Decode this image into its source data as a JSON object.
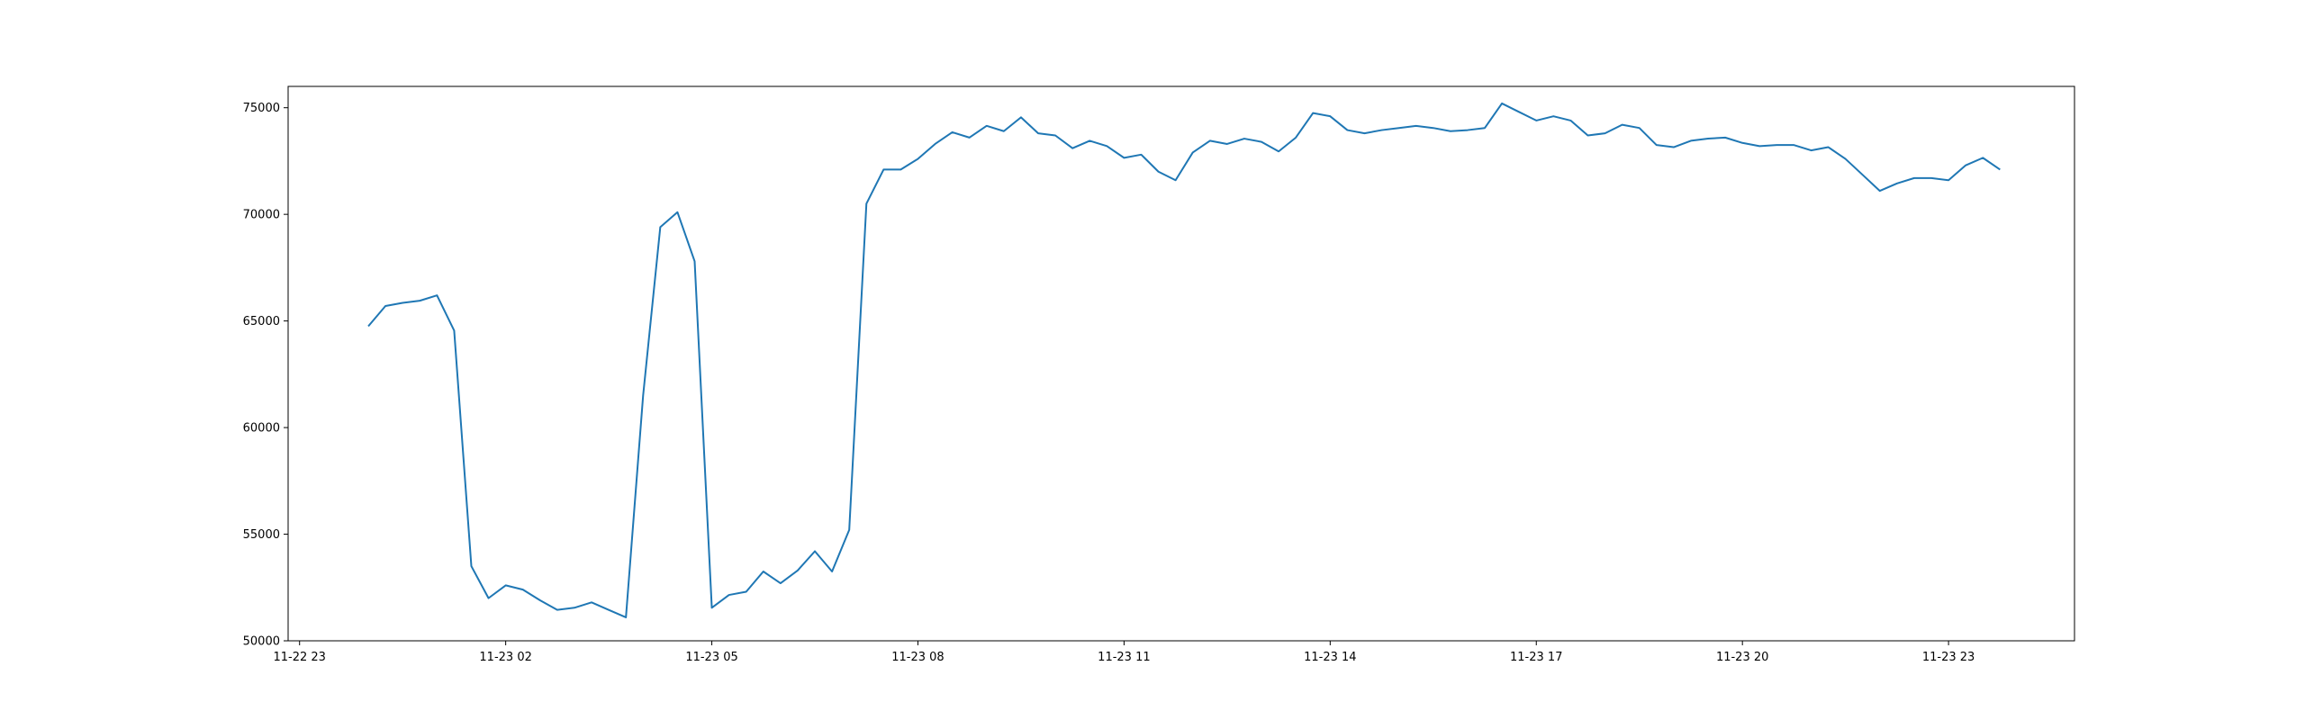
{
  "chart_data": {
    "type": "line",
    "title": "",
    "xlabel": "",
    "ylabel": "",
    "grid": false,
    "legend": "none",
    "x_tick_labels": [
      "11-22 23",
      "11-23 02",
      "11-23 05",
      "11-23 08",
      "11-23 11",
      "11-23 14",
      "11-23 17",
      "11-23 20",
      "11-23 23"
    ],
    "y_tick_labels": [
      "50000",
      "55000",
      "60000",
      "65000",
      "70000",
      "75000"
    ],
    "y_ticks": [
      50000,
      55000,
      60000,
      65000,
      70000,
      75000
    ],
    "xlim": [
      "11-22 22:50",
      "11-24 00:50"
    ],
    "ylim": [
      50000,
      76000
    ],
    "colors": {
      "line": "#1f77b4",
      "axes": "#000000",
      "background": "#ffffff"
    },
    "series": [
      {
        "x": [
          "11-23 00:00",
          "11-23 00:15",
          "11-23 00:30",
          "11-23 00:45",
          "11-23 01:00",
          "11-23 01:15",
          "11-23 01:30",
          "11-23 01:45",
          "11-23 02:00",
          "11-23 02:15",
          "11-23 02:30",
          "11-23 02:45",
          "11-23 03:00",
          "11-23 03:15",
          "11-23 03:30",
          "11-23 03:45",
          "11-23 04:00",
          "11-23 04:15",
          "11-23 04:30",
          "11-23 04:45",
          "11-23 05:00",
          "11-23 05:15",
          "11-23 05:30",
          "11-23 05:45",
          "11-23 06:00",
          "11-23 06:15",
          "11-23 06:30",
          "11-23 06:45",
          "11-23 07:00",
          "11-23 07:15",
          "11-23 07:30",
          "11-23 07:45",
          "11-23 08:00",
          "11-23 08:15",
          "11-23 08:30",
          "11-23 08:45",
          "11-23 09:00",
          "11-23 09:15",
          "11-23 09:30",
          "11-23 09:45",
          "11-23 10:00",
          "11-23 10:15",
          "11-23 10:30",
          "11-23 10:45",
          "11-23 11:00",
          "11-23 11:15",
          "11-23 11:30",
          "11-23 11:45",
          "11-23 12:00",
          "11-23 12:15",
          "11-23 12:30",
          "11-23 12:45",
          "11-23 13:00",
          "11-23 13:15",
          "11-23 13:30",
          "11-23 13:45",
          "11-23 14:00",
          "11-23 14:15",
          "11-23 14:30",
          "11-23 14:45",
          "11-23 15:00",
          "11-23 15:15",
          "11-23 15:30",
          "11-23 15:45",
          "11-23 16:00",
          "11-23 16:15",
          "11-23 16:30",
          "11-23 16:45",
          "11-23 17:00",
          "11-23 17:15",
          "11-23 17:30",
          "11-23 17:45",
          "11-23 18:00",
          "11-23 18:15",
          "11-23 18:30",
          "11-23 18:45",
          "11-23 19:00",
          "11-23 19:15",
          "11-23 19:30",
          "11-23 19:45",
          "11-23 20:00",
          "11-23 20:15",
          "11-23 20:30",
          "11-23 20:45",
          "11-23 21:00",
          "11-23 21:15",
          "11-23 21:30",
          "11-23 21:45",
          "11-23 22:00",
          "11-23 22:15",
          "11-23 22:30",
          "11-23 22:45",
          "11-23 23:00",
          "11-23 23:15",
          "11-23 23:30",
          "11-23 23:45"
        ],
        "values": [
          64750,
          65700,
          65850,
          65950,
          66200,
          64550,
          53500,
          52000,
          52600,
          52400,
          51900,
          51450,
          51550,
          51800,
          51450,
          51100,
          61500,
          69400,
          70100,
          67800,
          51550,
          52150,
          52300,
          53250,
          52700,
          53300,
          54200,
          53250,
          55200,
          70500,
          72100,
          72100,
          72600,
          73300,
          73850,
          73600,
          74150,
          73900,
          74550,
          73800,
          73700,
          73100,
          73450,
          73200,
          72650,
          72800,
          72000,
          71600,
          72900,
          73450,
          73300,
          73550,
          73400,
          72950,
          73600,
          74750,
          74600,
          73950,
          73800,
          73950,
          74050,
          74150,
          74050,
          73900,
          73950,
          74050,
          75200,
          74800,
          74400,
          74600,
          74400,
          73700,
          73800,
          74200,
          74050,
          73250,
          73150,
          73450,
          73550,
          73600,
          73350,
          73200,
          73250,
          73250,
          73000,
          73150,
          72600,
          71850,
          71100,
          71450,
          71700,
          71700,
          71600,
          72300,
          72650,
          72100
        ]
      }
    ]
  }
}
